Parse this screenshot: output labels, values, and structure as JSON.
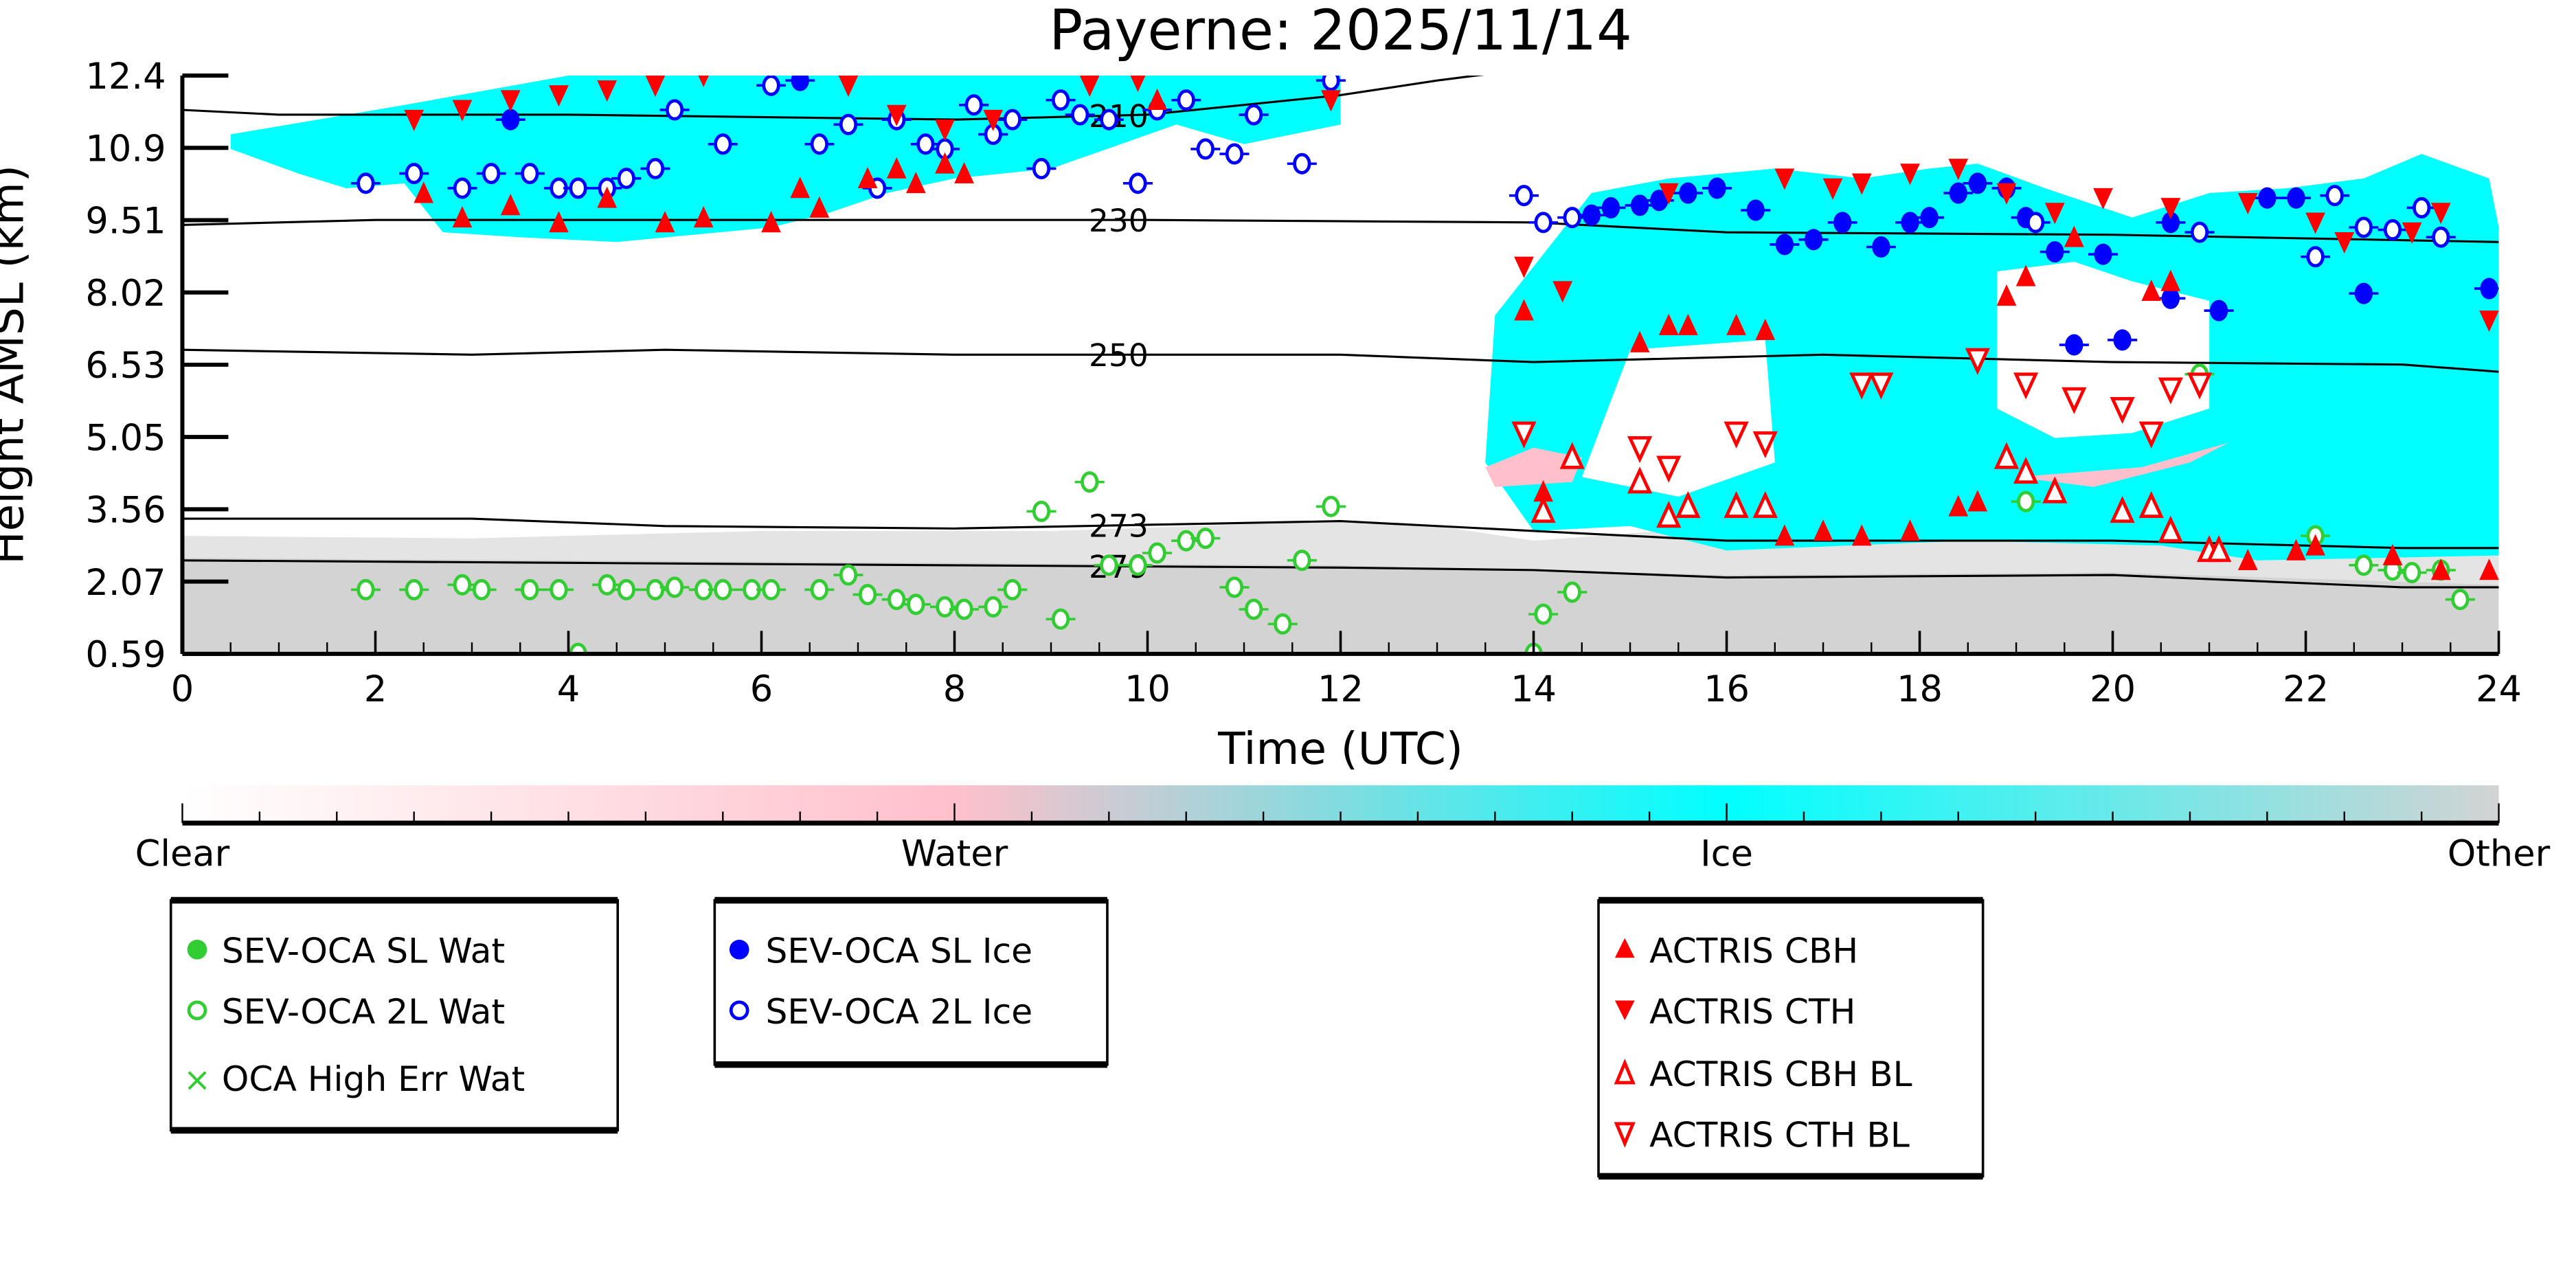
{
  "chart_data": {
    "type": "scatter",
    "title": "Payerne: 2025/11/14",
    "xlabel": "Time (UTC)",
    "ylabel": "Height AMSL (km)",
    "xlim": [
      0,
      24
    ],
    "ylim": [
      0.59,
      12.4
    ],
    "x_ticks": [
      "0",
      "2",
      "4",
      "6",
      "8",
      "10",
      "12",
      "14",
      "16",
      "18",
      "20",
      "22",
      "24"
    ],
    "y_ticks": [
      "0.59",
      "2.07",
      "3.56",
      "5.05",
      "6.53",
      "8.02",
      "9.51",
      "10.9",
      "12.4"
    ],
    "colorbar": {
      "labels": [
        "Clear",
        "Water",
        "Ice",
        "Other"
      ],
      "colors": [
        "#ffffff",
        "#ffc0cb",
        "#00ffff",
        "#d3d3d3"
      ]
    },
    "contours": [
      {
        "label": "210",
        "points": [
          [
            0,
            11.7
          ],
          [
            1,
            11.6
          ],
          [
            4,
            11.6
          ],
          [
            8,
            11.5
          ],
          [
            10,
            11.6
          ],
          [
            12,
            12.0
          ],
          [
            13,
            12.3
          ],
          [
            14.2,
            12.6
          ]
        ]
      },
      {
        "label": "230",
        "points": [
          [
            0,
            9.35
          ],
          [
            2,
            9.45
          ],
          [
            6,
            9.45
          ],
          [
            10,
            9.45
          ],
          [
            14,
            9.4
          ],
          [
            16,
            9.2
          ],
          [
            20,
            9.15
          ],
          [
            24,
            9.0
          ]
        ]
      },
      {
        "label": "250",
        "points": [
          [
            0,
            6.8
          ],
          [
            3,
            6.7
          ],
          [
            5,
            6.8
          ],
          [
            8,
            6.7
          ],
          [
            12,
            6.7
          ],
          [
            14,
            6.55
          ],
          [
            17,
            6.7
          ],
          [
            20,
            6.55
          ],
          [
            23,
            6.5
          ],
          [
            24,
            6.35
          ]
        ]
      },
      {
        "label": "273",
        "points": [
          [
            0,
            3.35
          ],
          [
            3,
            3.35
          ],
          [
            5,
            3.2
          ],
          [
            8,
            3.15
          ],
          [
            12,
            3.3
          ],
          [
            14,
            3.1
          ],
          [
            16,
            2.9
          ],
          [
            20,
            2.9
          ],
          [
            23,
            2.75
          ],
          [
            24,
            2.75
          ]
        ]
      },
      {
        "label": "279",
        "points": [
          [
            0,
            2.5
          ],
          [
            4,
            2.45
          ],
          [
            8,
            2.4
          ],
          [
            12,
            2.35
          ],
          [
            14,
            2.3
          ],
          [
            16,
            2.15
          ],
          [
            20,
            2.2
          ],
          [
            23,
            1.95
          ],
          [
            24,
            1.95
          ]
        ]
      }
    ],
    "series": [
      {
        "name": "SEV-OCA SL Wat",
        "color": "#32cd32",
        "marker": "filled-circle",
        "points": []
      },
      {
        "name": "SEV-OCA 2L Wat",
        "color": "#32cd32",
        "marker": "open-circle",
        "points": [
          [
            1.9,
            1.9
          ],
          [
            2.4,
            1.9
          ],
          [
            2.9,
            2.0
          ],
          [
            3.1,
            1.9
          ],
          [
            3.6,
            1.9
          ],
          [
            3.9,
            1.9
          ],
          [
            4.1,
            0.6
          ],
          [
            4.4,
            2.0
          ],
          [
            4.6,
            1.9
          ],
          [
            4.9,
            1.9
          ],
          [
            5.1,
            1.95
          ],
          [
            5.4,
            1.9
          ],
          [
            5.6,
            1.9
          ],
          [
            5.9,
            1.9
          ],
          [
            6.1,
            1.9
          ],
          [
            6.6,
            1.9
          ],
          [
            6.9,
            2.2
          ],
          [
            7.1,
            1.8
          ],
          [
            7.4,
            1.7
          ],
          [
            7.6,
            1.6
          ],
          [
            7.9,
            1.55
          ],
          [
            8.1,
            1.5
          ],
          [
            8.4,
            1.55
          ],
          [
            8.6,
            1.9
          ],
          [
            8.9,
            3.5
          ],
          [
            9.1,
            1.3
          ],
          [
            9.4,
            4.1
          ],
          [
            9.6,
            2.4
          ],
          [
            9.9,
            2.4
          ],
          [
            10.1,
            2.65
          ],
          [
            10.4,
            2.9
          ],
          [
            10.6,
            2.95
          ],
          [
            10.9,
            1.95
          ],
          [
            11.1,
            1.5
          ],
          [
            11.4,
            1.2
          ],
          [
            11.6,
            2.5
          ],
          [
            11.9,
            3.6
          ],
          [
            14.0,
            0.6
          ],
          [
            14.1,
            1.4
          ],
          [
            14.4,
            1.85
          ],
          [
            19.1,
            3.7
          ],
          [
            20.9,
            6.3
          ],
          [
            22.1,
            3.0
          ],
          [
            22.6,
            2.4
          ],
          [
            22.9,
            2.3
          ],
          [
            23.1,
            2.25
          ],
          [
            23.4,
            2.3
          ],
          [
            23.6,
            1.7
          ]
        ]
      },
      {
        "name": "OCA High Err Wat",
        "color": "#32cd32",
        "marker": "x",
        "points": []
      },
      {
        "name": "SEV-OCA SL Ice",
        "color": "#0000ff",
        "marker": "filled-circle",
        "points": [
          [
            3.4,
            11.5
          ],
          [
            6.4,
            12.3
          ],
          [
            14.6,
            9.55
          ],
          [
            14.8,
            9.7
          ],
          [
            15.1,
            9.75
          ],
          [
            15.3,
            9.85
          ],
          [
            15.6,
            10.0
          ],
          [
            15.9,
            10.1
          ],
          [
            16.3,
            9.65
          ],
          [
            16.6,
            8.95
          ],
          [
            16.9,
            9.05
          ],
          [
            17.2,
            9.4
          ],
          [
            17.6,
            8.9
          ],
          [
            17.9,
            9.4
          ],
          [
            18.1,
            9.5
          ],
          [
            18.4,
            10.0
          ],
          [
            18.6,
            10.2
          ],
          [
            18.9,
            10.1
          ],
          [
            19.1,
            9.5
          ],
          [
            19.4,
            8.8
          ],
          [
            19.9,
            8.75
          ],
          [
            20.6,
            9.4
          ],
          [
            19.6,
            6.9
          ],
          [
            20.1,
            7.0
          ],
          [
            20.6,
            7.85
          ],
          [
            21.1,
            7.6
          ],
          [
            21.6,
            9.9
          ],
          [
            21.9,
            9.9
          ],
          [
            22.6,
            7.95
          ],
          [
            23.9,
            8.05
          ]
        ]
      },
      {
        "name": "SEV-OCA 2L Ice",
        "color": "#0000ff",
        "marker": "open-circle",
        "points": [
          [
            1.9,
            10.2
          ],
          [
            2.4,
            10.4
          ],
          [
            2.9,
            10.1
          ],
          [
            3.2,
            10.4
          ],
          [
            3.6,
            10.4
          ],
          [
            3.9,
            10.1
          ],
          [
            4.1,
            10.1
          ],
          [
            4.4,
            10.1
          ],
          [
            4.6,
            10.3
          ],
          [
            4.9,
            10.5
          ],
          [
            5.1,
            11.7
          ],
          [
            5.6,
            11.0
          ],
          [
            6.1,
            12.2
          ],
          [
            6.6,
            11.0
          ],
          [
            6.9,
            11.4
          ],
          [
            7.2,
            10.1
          ],
          [
            7.4,
            11.5
          ],
          [
            7.7,
            11.0
          ],
          [
            7.9,
            10.9
          ],
          [
            8.2,
            11.8
          ],
          [
            8.4,
            11.2
          ],
          [
            8.6,
            11.5
          ],
          [
            8.9,
            10.5
          ],
          [
            9.1,
            11.9
          ],
          [
            9.3,
            11.6
          ],
          [
            9.6,
            11.5
          ],
          [
            9.9,
            10.2
          ],
          [
            10.1,
            11.7
          ],
          [
            10.4,
            11.9
          ],
          [
            10.6,
            10.9
          ],
          [
            10.9,
            10.8
          ],
          [
            11.1,
            11.6
          ],
          [
            11.6,
            10.6
          ],
          [
            11.9,
            12.3
          ],
          [
            13.9,
            9.95
          ],
          [
            14.1,
            9.4
          ],
          [
            14.4,
            9.5
          ],
          [
            19.2,
            9.4
          ],
          [
            20.9,
            9.2
          ],
          [
            22.1,
            8.7
          ],
          [
            22.3,
            9.95
          ],
          [
            22.6,
            9.3
          ],
          [
            22.9,
            9.25
          ],
          [
            23.2,
            9.7
          ],
          [
            23.4,
            9.1
          ]
        ]
      },
      {
        "name": "ACTRIS CBH",
        "color": "#ff0000",
        "marker": "filled-triangle-up",
        "points": [
          [
            2.5,
            10.0
          ],
          [
            2.9,
            9.5
          ],
          [
            3.4,
            9.75
          ],
          [
            3.9,
            9.4
          ],
          [
            4.4,
            9.9
          ],
          [
            5.0,
            9.4
          ],
          [
            5.4,
            9.5
          ],
          [
            6.1,
            9.4
          ],
          [
            6.4,
            10.1
          ],
          [
            6.6,
            9.7
          ],
          [
            7.1,
            10.3
          ],
          [
            7.4,
            10.5
          ],
          [
            7.6,
            10.2
          ],
          [
            7.9,
            10.6
          ],
          [
            8.1,
            10.4
          ],
          [
            10.1,
            11.9
          ],
          [
            13.9,
            7.6
          ],
          [
            14.1,
            3.9
          ],
          [
            15.1,
            6.95
          ],
          [
            15.4,
            7.3
          ],
          [
            15.6,
            7.3
          ],
          [
            16.1,
            7.3
          ],
          [
            16.4,
            7.2
          ],
          [
            16.6,
            3.0
          ],
          [
            17.0,
            3.1
          ],
          [
            17.4,
            3.0
          ],
          [
            17.9,
            3.1
          ],
          [
            18.4,
            3.6
          ],
          [
            18.6,
            3.7
          ],
          [
            18.9,
            7.9
          ],
          [
            19.1,
            8.3
          ],
          [
            19.6,
            9.1
          ],
          [
            20.4,
            8.0
          ],
          [
            20.6,
            8.2
          ],
          [
            21.4,
            2.5
          ],
          [
            21.9,
            2.7
          ],
          [
            22.1,
            2.8
          ],
          [
            22.9,
            2.6
          ],
          [
            23.4,
            2.3
          ],
          [
            23.9,
            2.3
          ]
        ]
      },
      {
        "name": "ACTRIS CTH",
        "color": "#ff0000",
        "marker": "filled-triangle-down",
        "points": [
          [
            2.4,
            11.5
          ],
          [
            2.9,
            11.7
          ],
          [
            3.4,
            11.9
          ],
          [
            3.9,
            12.0
          ],
          [
            4.4,
            12.1
          ],
          [
            4.9,
            12.2
          ],
          [
            5.4,
            12.4
          ],
          [
            6.9,
            12.2
          ],
          [
            7.4,
            11.6
          ],
          [
            7.9,
            11.3
          ],
          [
            8.4,
            11.5
          ],
          [
            9.4,
            12.2
          ],
          [
            9.9,
            12.3
          ],
          [
            11.9,
            11.9
          ],
          [
            13.9,
            8.5
          ],
          [
            14.3,
            8.0
          ],
          [
            15.4,
            10.0
          ],
          [
            16.6,
            10.3
          ],
          [
            17.1,
            10.1
          ],
          [
            17.4,
            10.2
          ],
          [
            17.9,
            10.4
          ],
          [
            18.4,
            10.5
          ],
          [
            18.9,
            10.0
          ],
          [
            19.4,
            9.6
          ],
          [
            19.9,
            9.9
          ],
          [
            20.6,
            9.7
          ],
          [
            21.4,
            9.8
          ],
          [
            22.1,
            9.4
          ],
          [
            22.4,
            9.0
          ],
          [
            23.1,
            9.2
          ],
          [
            23.4,
            9.6
          ],
          [
            23.9,
            7.4
          ]
        ]
      },
      {
        "name": "ACTRIS CBH BL",
        "color": "#ff0000",
        "marker": "open-triangle-up",
        "points": [
          [
            14.1,
            3.5
          ],
          [
            14.4,
            4.6
          ],
          [
            15.1,
            4.1
          ],
          [
            15.4,
            3.4
          ],
          [
            15.6,
            3.6
          ],
          [
            16.1,
            3.6
          ],
          [
            16.4,
            3.6
          ],
          [
            18.9,
            4.6
          ],
          [
            19.1,
            4.3
          ],
          [
            19.4,
            3.9
          ],
          [
            20.1,
            3.5
          ],
          [
            20.4,
            3.6
          ],
          [
            20.6,
            3.1
          ],
          [
            21.0,
            2.7
          ],
          [
            21.1,
            2.7
          ]
        ]
      },
      {
        "name": "ACTRIS CTH BL",
        "color": "#ff0000",
        "marker": "open-triangle-down",
        "points": [
          [
            13.9,
            5.1
          ],
          [
            15.1,
            4.8
          ],
          [
            15.4,
            4.4
          ],
          [
            16.1,
            5.1
          ],
          [
            16.4,
            4.9
          ],
          [
            17.4,
            6.1
          ],
          [
            17.6,
            6.1
          ],
          [
            18.6,
            6.6
          ],
          [
            19.1,
            6.1
          ],
          [
            19.6,
            5.8
          ],
          [
            20.1,
            5.6
          ],
          [
            20.4,
            5.1
          ],
          [
            20.6,
            6.0
          ],
          [
            20.9,
            6.1
          ]
        ]
      }
    ]
  }
}
